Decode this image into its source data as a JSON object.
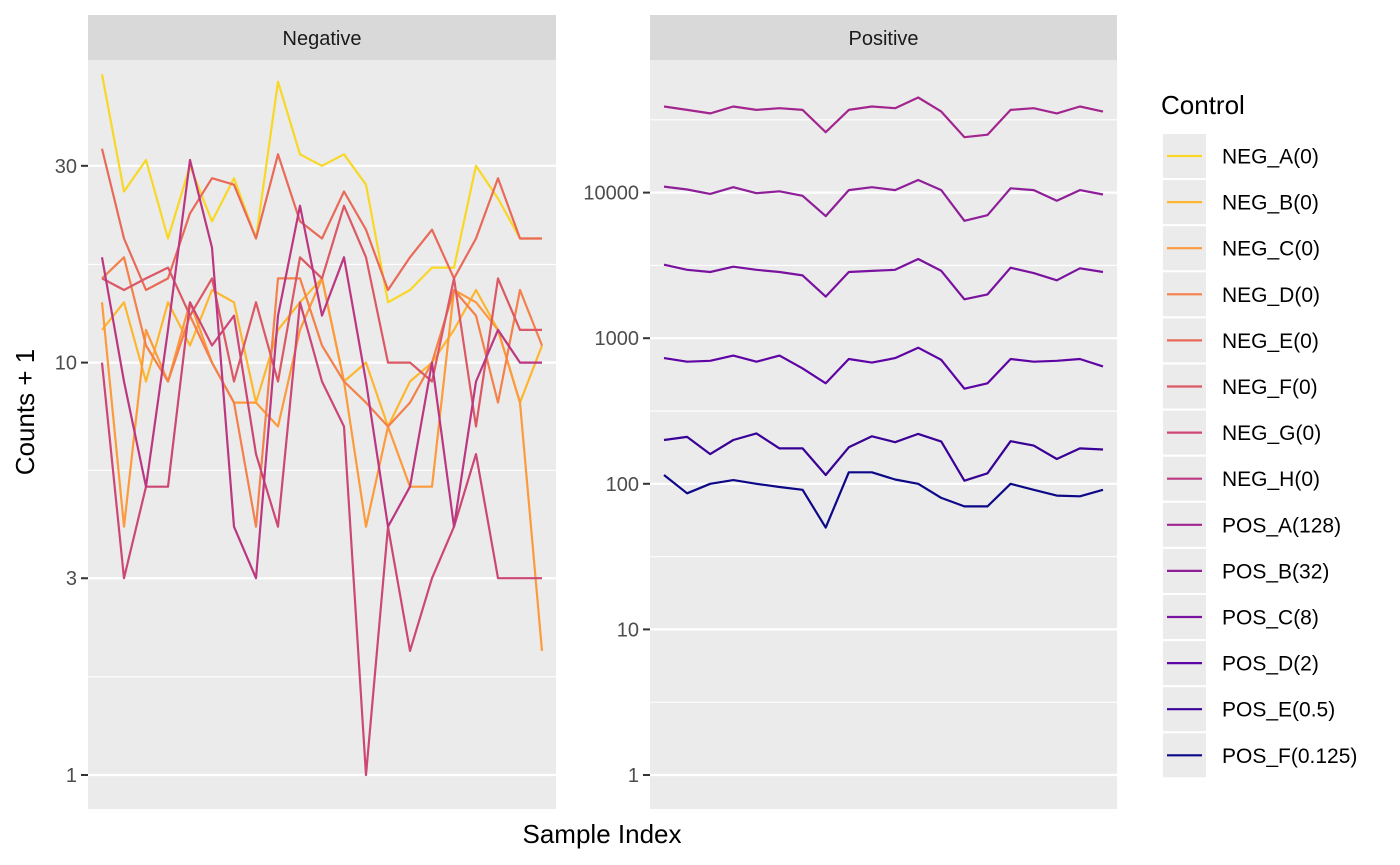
{
  "chart_data": {
    "type": "line",
    "ylabel": "Counts + 1",
    "xlabel": "Sample Index",
    "y_scale": "log10",
    "grid": true,
    "legend": {
      "title": "Control",
      "position": "right",
      "entries": [
        {
          "name": "NEG_A(0)",
          "color": "#F8D726"
        },
        {
          "name": "NEG_B(0)",
          "color": "#FDB62F"
        },
        {
          "name": "NEG_C(0)",
          "color": "#FC9A3C"
        },
        {
          "name": "NEG_D(0)",
          "color": "#F4804B"
        },
        {
          "name": "NEG_E(0)",
          "color": "#E96A58"
        },
        {
          "name": "NEG_F(0)",
          "color": "#DB5865"
        },
        {
          "name": "NEG_G(0)",
          "color": "#CC4775"
        },
        {
          "name": "NEG_H(0)",
          "color": "#BB3781"
        },
        {
          "name": "POS_A(128)",
          "color": "#A2268E"
        },
        {
          "name": "POS_B(32)",
          "color": "#8E1F99"
        },
        {
          "name": "POS_C(8)",
          "color": "#7A12A0"
        },
        {
          "name": "POS_D(2)",
          "color": "#5E04A5"
        },
        {
          "name": "POS_E(0.5)",
          "color": "#3A0196"
        },
        {
          "name": "POS_F(0.125)",
          "color": "#0D0887"
        }
      ]
    },
    "panels": [
      {
        "strip": "Negative",
        "y_ticks": [
          1,
          3,
          10,
          30
        ],
        "y_minor": [
          1.73,
          5.48,
          17.3
        ],
        "ylim": [
          0.9,
          60
        ],
        "n_points": 21,
        "series": [
          {
            "name": "NEG_A(0)",
            "values": [
              50,
              26,
              31,
              20,
              30,
              22,
              28,
              20,
              48,
              32,
              30,
              32,
              27,
              14,
              15,
              17,
              17,
              30,
              25,
              20,
              20
            ]
          },
          {
            "name": "NEG_B(0)",
            "values": [
              12,
              14,
              9,
              14,
              11,
              15,
              14,
              8,
              12,
              14,
              16,
              9,
              10,
              7,
              9,
              10,
              12,
              15,
              12,
              8,
              11
            ]
          },
          {
            "name": "NEG_C(0)",
            "values": [
              14,
              4,
              12,
              9,
              14,
              10,
              8,
              8,
              7,
              12,
              16,
              9,
              4,
              7,
              5,
              5,
              15,
              14,
              12,
              8,
              2
            ]
          },
          {
            "name": "NEG_D(0)",
            "values": [
              16,
              18,
              11,
              9,
              13,
              10,
              8,
              4,
              16,
              16,
              11,
              9,
              8,
              7,
              8,
              10,
              15,
              13,
              8,
              15,
              11
            ]
          },
          {
            "name": "NEG_E(0)",
            "values": [
              33,
              20,
              15,
              16,
              23,
              28,
              27,
              20,
              32,
              22,
              20,
              26,
              21,
              15,
              18,
              21,
              16,
              20,
              28,
              20,
              20
            ]
          },
          {
            "name": "NEG_F(0)",
            "values": [
              16,
              15,
              16,
              17,
              13,
              16,
              9,
              14,
              9,
              18,
              16,
              24,
              18,
              10,
              10,
              9,
              16,
              7,
              16,
              12,
              12
            ]
          },
          {
            "name": "NEG_G(0)",
            "values": [
              10,
              3,
              5,
              5,
              14,
              11,
              13,
              6,
              4,
              14,
              9,
              7,
              1,
              4,
              2,
              3,
              4,
              6,
              3,
              3,
              3
            ]
          },
          {
            "name": "NEG_H(0)",
            "values": [
              18,
              9,
              5,
              12,
              31,
              19,
              4,
              3,
              13,
              24,
              13,
              18,
              9,
              4,
              5,
              10,
              4,
              9,
              12,
              10,
              10
            ]
          }
        ]
      },
      {
        "strip": "Positive",
        "y_ticks": [
          1,
          10,
          100,
          1000,
          10000
        ],
        "y_minor": [
          3.16,
          31.6,
          316,
          3162,
          31623
        ],
        "ylim": [
          0.5,
          100000
        ],
        "n_points": 20,
        "series": [
          {
            "name": "POS_A(128)",
            "values": [
              39000,
              37000,
              35000,
              39000,
              37000,
              38000,
              37000,
              26000,
              37000,
              39000,
              38000,
              45000,
              36000,
              24000,
              25000,
              37000,
              38000,
              35000,
              39000,
              36000
            ]
          },
          {
            "name": "POS_B(32)",
            "values": [
              11000,
              10500,
              9800,
              10900,
              9900,
              10200,
              9500,
              6900,
              10400,
              10900,
              10400,
              12200,
              10400,
              6400,
              7000,
              10700,
              10400,
              8800,
              10400,
              9700
            ]
          },
          {
            "name": "POS_C(8)",
            "values": [
              3200,
              2950,
              2850,
              3100,
              2950,
              2850,
              2700,
              1930,
              2850,
              2900,
              2950,
              3500,
              2900,
              1850,
              2000,
              3050,
              2800,
              2500,
              3020,
              2850
            ]
          },
          {
            "name": "POS_D(2)",
            "values": [
              730,
              690,
              700,
              760,
              690,
              760,
              620,
              490,
              720,
              680,
              730,
              860,
              710,
              450,
              490,
              720,
              690,
              700,
              720,
              640
            ]
          },
          {
            "name": "POS_E(0.5)",
            "values": [
              200,
              210,
              160,
              200,
              222,
              175,
              175,
              115,
              178,
              212,
              193,
              220,
              195,
              105,
              118,
              196,
              183,
              148,
              175,
              172
            ]
          },
          {
            "name": "POS_F(0.125)",
            "values": [
              115,
              86,
              100,
              106,
              100,
              95,
              91,
              50,
              120,
              120,
              107,
              100,
              80,
              70,
              70,
              100,
              91,
              83,
              82,
              91
            ]
          }
        ]
      }
    ]
  }
}
